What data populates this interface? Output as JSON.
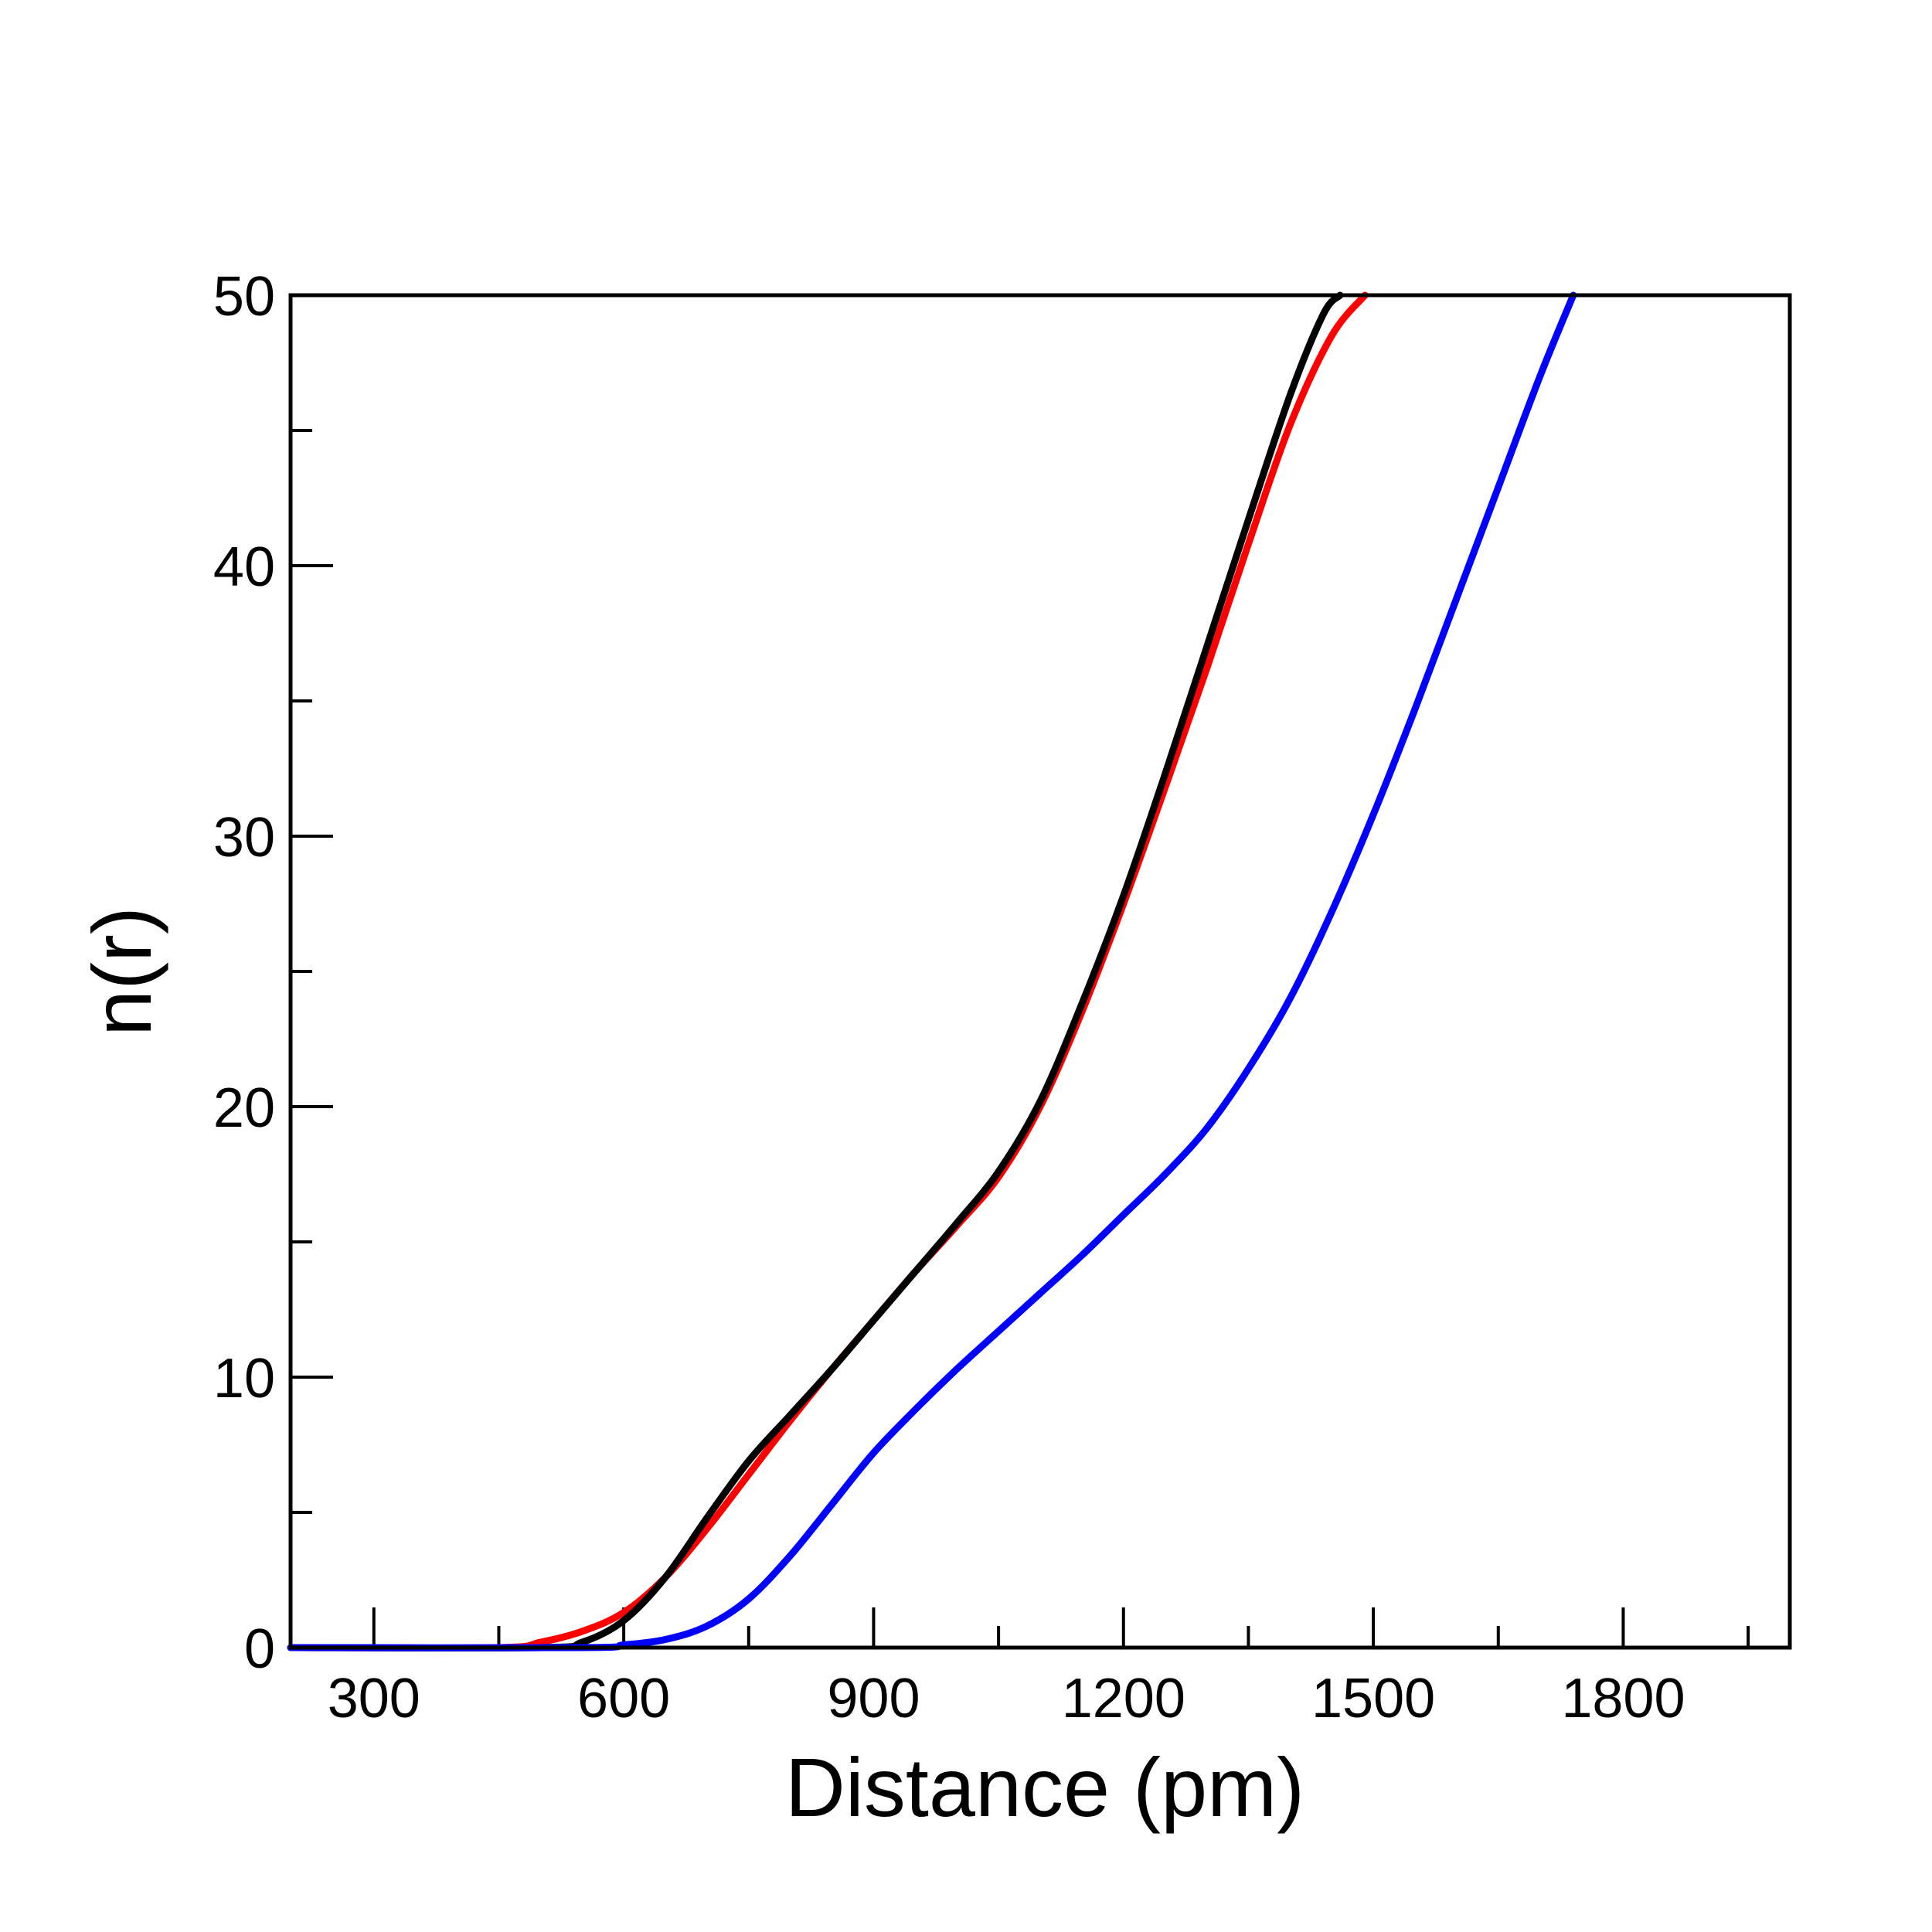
{
  "chart_data": {
    "type": "line",
    "title": "",
    "xlabel": "Distance (pm)",
    "ylabel": "n(r)",
    "xlim": [
      200,
      2000
    ],
    "ylim": [
      0,
      50
    ],
    "x_ticks": [
      "300",
      "600",
      "900",
      "1200",
      "1500",
      "1800"
    ],
    "y_ticks": [
      "0",
      "10",
      "20",
      "30",
      "40",
      "50"
    ],
    "grid": false,
    "legend": "none",
    "series": [
      {
        "color": "#ff0000",
        "x": [
          200,
          450,
          500,
          550,
          600,
          650,
          700,
          750,
          800,
          850,
          900,
          950,
          1000,
          1050,
          1100,
          1150,
          1200,
          1250,
          1300,
          1350,
          1400,
          1450,
          1490
        ],
        "y": [
          0,
          0,
          0.2,
          0.6,
          1.3,
          2.6,
          4.4,
          6.4,
          8.4,
          10.3,
          12.1,
          13.9,
          15.6,
          17.4,
          20.0,
          23.5,
          27.5,
          31.8,
          36.2,
          40.8,
          45.2,
          48.5,
          50.0
        ]
      },
      {
        "color": "#000000",
        "x": [
          200,
          500,
          550,
          600,
          650,
          700,
          750,
          800,
          850,
          900,
          950,
          1000,
          1050,
          1100,
          1150,
          1200,
          1250,
          1300,
          1350,
          1400,
          1440,
          1460
        ],
        "y": [
          0,
          0,
          0.2,
          1.0,
          2.6,
          4.8,
          6.9,
          8.6,
          10.3,
          12.1,
          13.9,
          15.7,
          17.6,
          20.2,
          23.8,
          27.8,
          32.3,
          37.0,
          41.7,
          46.3,
          49.3,
          50.0
        ]
      },
      {
        "color": "#0000ff",
        "x": [
          200,
          550,
          600,
          650,
          700,
          750,
          800,
          850,
          900,
          950,
          1000,
          1050,
          1100,
          1150,
          1200,
          1250,
          1300,
          1350,
          1400,
          1450,
          1500,
          1550,
          1600,
          1650,
          1700,
          1740
        ],
        "y": [
          0,
          0,
          0.1,
          0.3,
          0.8,
          1.8,
          3.4,
          5.3,
          7.2,
          8.8,
          10.3,
          11.7,
          13.1,
          14.5,
          16.0,
          17.5,
          19.2,
          21.4,
          24.0,
          27.2,
          30.8,
          34.7,
          38.8,
          42.9,
          47.0,
          50.0
        ]
      }
    ]
  }
}
